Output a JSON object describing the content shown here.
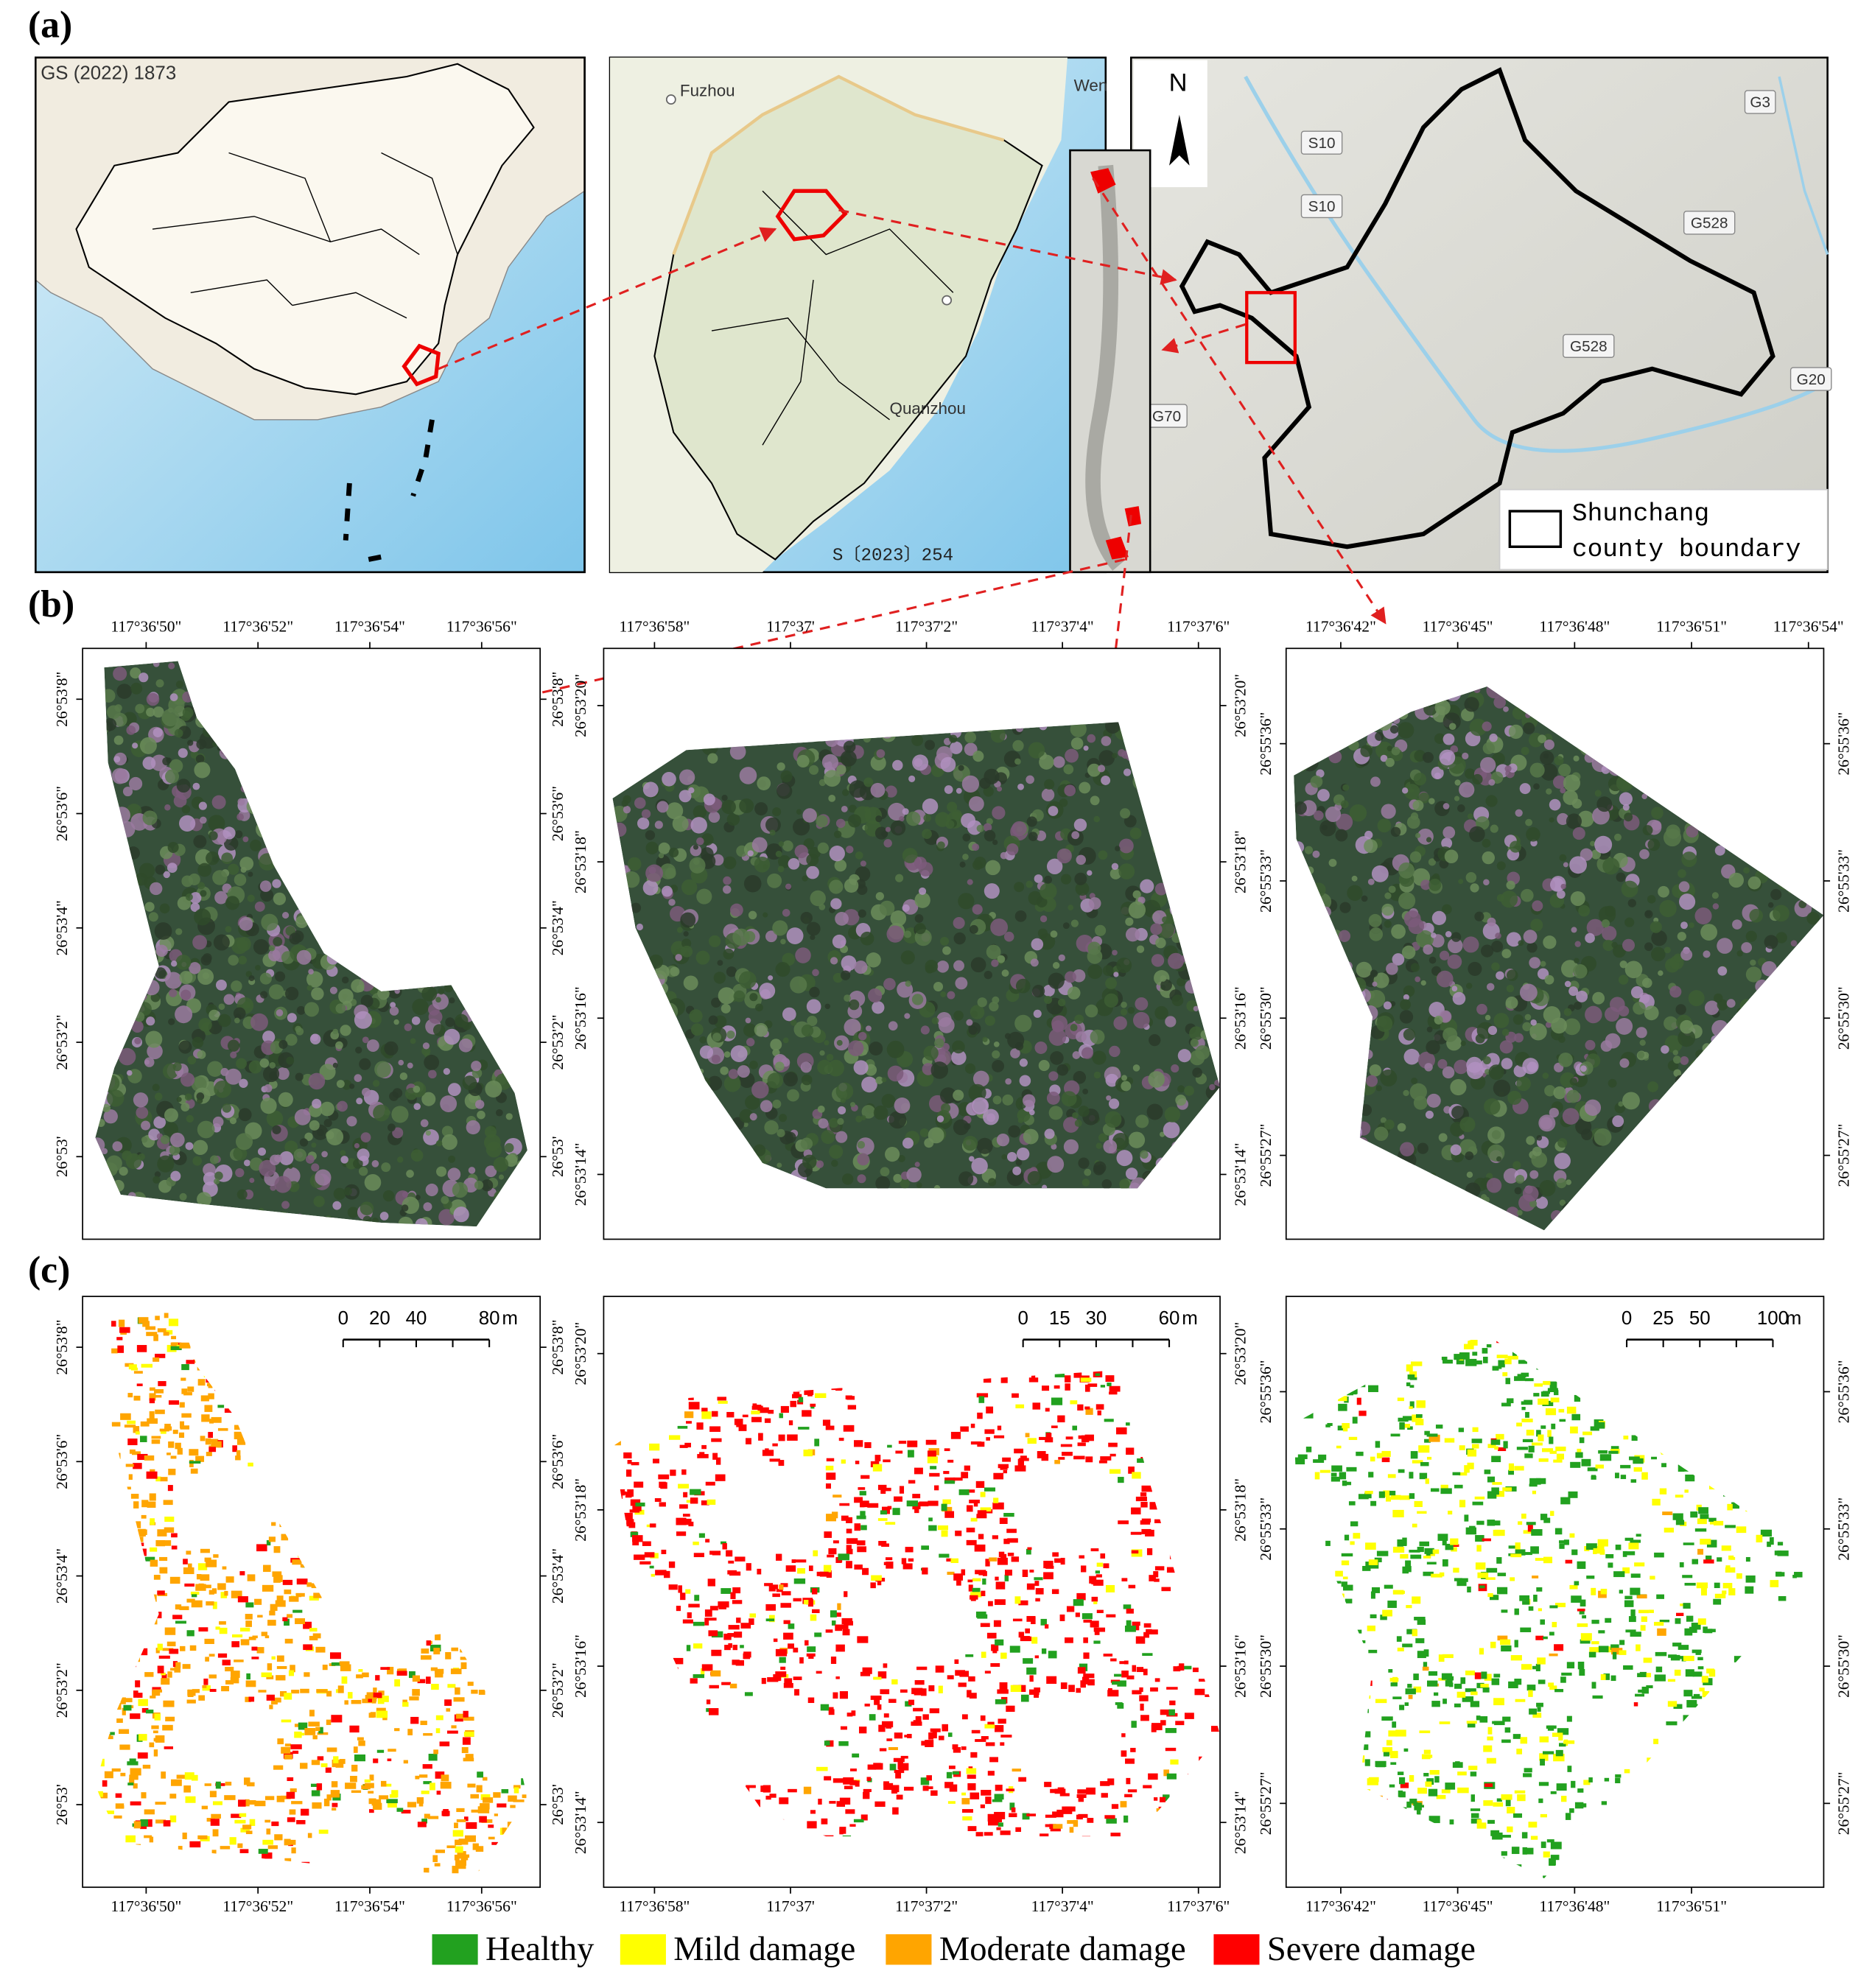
{
  "panel_a": {
    "label": "(a)",
    "china_map": {
      "approval_number": "GS (2022) 1873"
    },
    "province_map": {
      "cities": [
        "Fuzhou",
        "Wen",
        "Quanzhou"
      ],
      "approval_number": "S〔2023〕254"
    },
    "county_map": {
      "north_label": "N",
      "roads": [
        "S10",
        "S10",
        "G3",
        "G528",
        "G528",
        "G20",
        "G70"
      ],
      "legend_lines": [
        "Shunchang",
        "county boundary"
      ]
    }
  },
  "panel_b": {
    "label": "(b)",
    "maps": [
      {
        "xticks": [
          "117°36'50\"",
          "117°36'52\"",
          "117°36'54\"",
          "117°36'56\""
        ],
        "yticks": [
          "26°53'8\"",
          "26°53'6\"",
          "26°53'4\"",
          "26°53'2\"",
          "26°53'"
        ]
      },
      {
        "xticks": [
          "117°36'58\"",
          "117°37'",
          "117°37'2\"",
          "117°37'4\"",
          "117°37'6\""
        ],
        "yticks": [
          "26°53'20\"",
          "26°53'18\"",
          "26°53'16\"",
          "26°53'14\""
        ]
      },
      {
        "xticks": [
          "117°36'42\"",
          "117°36'45\"",
          "117°36'48\"",
          "117°36'51\"",
          "117°36'54\""
        ],
        "yticks": [
          "26°55'36\"",
          "26°55'33\"",
          "26°55'30\"",
          "26°55'27\""
        ]
      }
    ]
  },
  "panel_c": {
    "label": "(c)",
    "maps": [
      {
        "xticks": [
          "117°36'50\"",
          "117°36'52\"",
          "117°36'54\"",
          "117°36'56\""
        ],
        "yticks": [
          "26°53'8\"",
          "26°53'6\"",
          "26°53'4\"",
          "26°53'2\"",
          "26°53'"
        ],
        "scale_bar": {
          "ticks": [
            0,
            20,
            40,
            80
          ],
          "unit": "m"
        }
      },
      {
        "xticks": [
          "117°36'58\"",
          "117°37'",
          "117°37'2\"",
          "117°37'4\"",
          "117°37'6\""
        ],
        "yticks": [
          "26°53'20\"",
          "26°53'18\"",
          "26°53'16\"",
          "26°53'14\""
        ],
        "scale_bar": {
          "ticks": [
            0,
            15,
            30,
            60
          ],
          "unit": "m"
        }
      },
      {
        "xticks": [
          "117°36'42\"",
          "117°36'45\"",
          "117°36'48\"",
          "117°36'51\""
        ],
        "yticks": [
          "26°55'36\"",
          "26°55'33\"",
          "26°55'30\"",
          "26°55'27\""
        ],
        "scale_bar": {
          "ticks": [
            0,
            25,
            50,
            100
          ],
          "unit": "m"
        }
      }
    ]
  },
  "legend": [
    {
      "name": "Healthy",
      "color": "#22a11f"
    },
    {
      "name": "Mild damage",
      "color": "#ffff00"
    },
    {
      "name": "Moderate damage",
      "color": "#ffa500"
    },
    {
      "name": "Severe damage",
      "color": "#ff0000"
    }
  ]
}
